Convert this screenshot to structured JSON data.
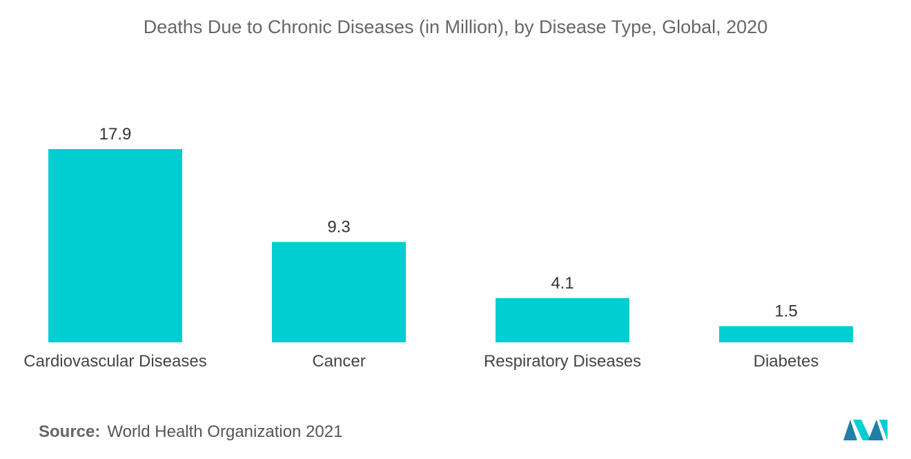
{
  "chart_data": {
    "type": "bar",
    "title": "Deaths Due to Chronic Diseases (in Million), by Disease Type, Global, 2020",
    "categories": [
      "Cardiovascular Diseases",
      "Cancer",
      "Respiratory Diseases",
      "Diabetes"
    ],
    "values": [
      17.9,
      9.3,
      4.1,
      1.5
    ],
    "value_labels": [
      "17.9",
      "9.3",
      "4.1",
      "1.5"
    ],
    "xlabel": "",
    "ylabel": "",
    "ylim": [
      0,
      17.9
    ],
    "grid": false,
    "legend": "none",
    "bar_color": "#00CED1"
  },
  "source": {
    "label": "Source:",
    "text": "World Health Organization 2021"
  },
  "logo": {
    "icon": "mordor-intelligence-logo-icon",
    "colors": [
      "#1f7fa6",
      "#00CED1"
    ]
  }
}
